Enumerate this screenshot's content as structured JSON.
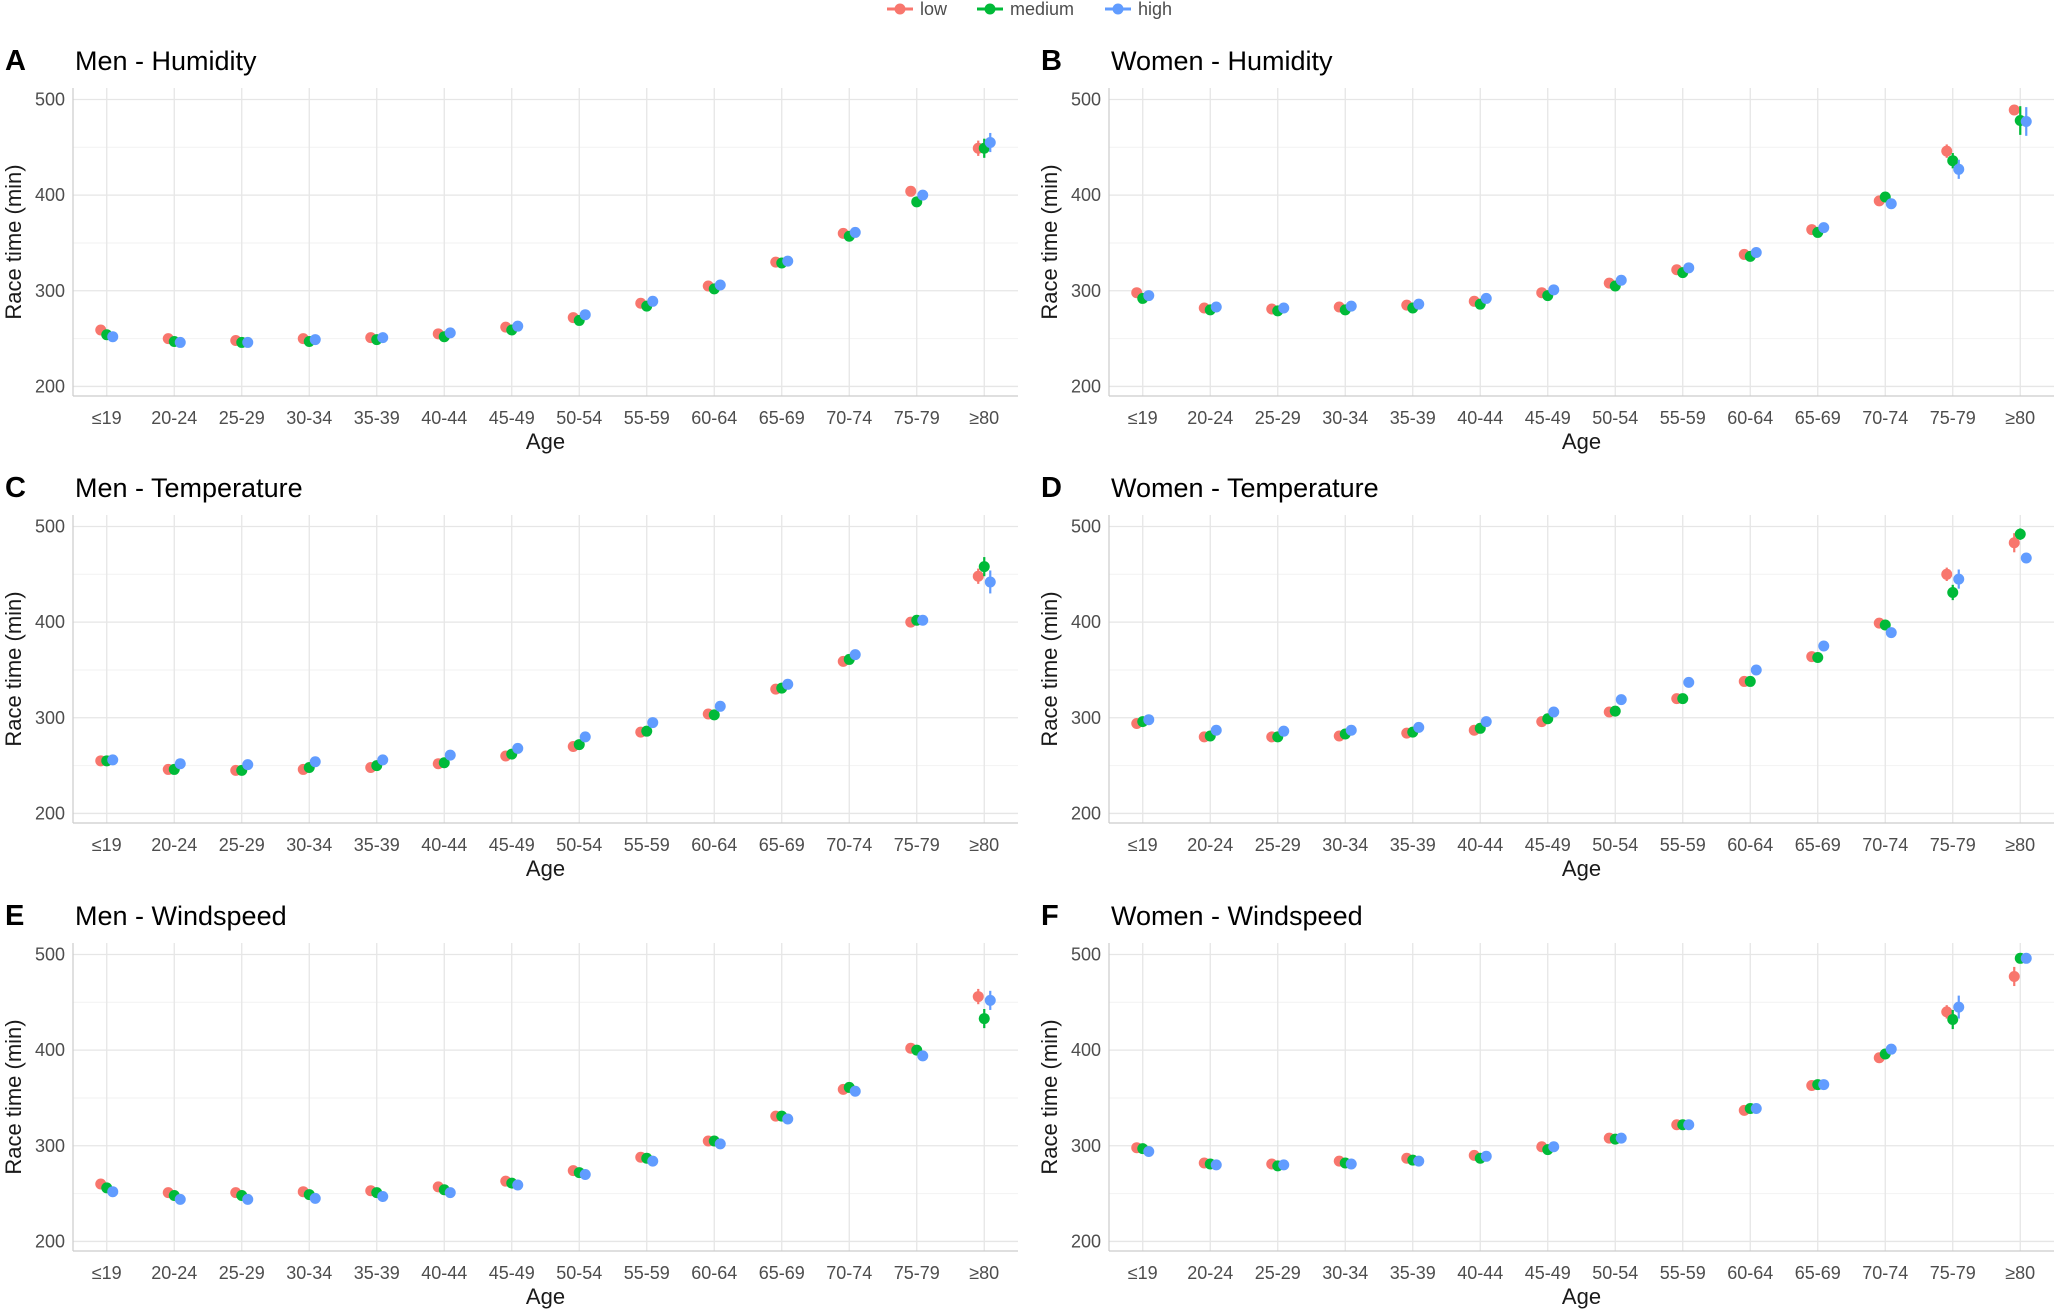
{
  "legend": {
    "items": [
      {
        "label": "low",
        "color": "#F8766D"
      },
      {
        "label": "medium",
        "color": "#00BA38"
      },
      {
        "label": "high",
        "color": "#619CFF"
      }
    ]
  },
  "chart_data": [
    {
      "letter": "A",
      "title": "Men - Humidity",
      "type": "scatter",
      "xlabel": "Age",
      "ylabel": "Race time (min)",
      "ylim": [
        190,
        512
      ],
      "yticks": [
        200,
        300,
        400,
        500
      ],
      "categories": [
        "≤19",
        "20-24",
        "25-29",
        "30-34",
        "35-39",
        "40-44",
        "45-49",
        "50-54",
        "55-59",
        "60-64",
        "65-69",
        "70-74",
        "75-79",
        "≥80"
      ],
      "series": [
        {
          "name": "low",
          "values": [
            259,
            250,
            248,
            250,
            251,
            255,
            262,
            272,
            287,
            305,
            330,
            360,
            404,
            449
          ],
          "err": [
            3,
            2,
            2,
            2,
            2,
            2,
            2,
            2,
            2,
            2,
            3,
            3,
            4,
            8
          ]
        },
        {
          "name": "medium",
          "values": [
            254,
            247,
            246,
            247,
            249,
            252,
            259,
            269,
            284,
            302,
            329,
            357,
            393,
            449
          ],
          "err": [
            3,
            2,
            2,
            2,
            2,
            2,
            2,
            2,
            2,
            2,
            3,
            3,
            5,
            10
          ]
        },
        {
          "name": "high",
          "values": [
            252,
            246,
            246,
            249,
            251,
            256,
            263,
            275,
            289,
            306,
            331,
            361,
            400,
            455
          ],
          "err": [
            3,
            2,
            2,
            2,
            2,
            2,
            2,
            2,
            2,
            2,
            3,
            3,
            4,
            10
          ]
        }
      ]
    },
    {
      "letter": "B",
      "title": "Women - Humidity",
      "type": "scatter",
      "xlabel": "Age",
      "ylabel": "Race time (min)",
      "ylim": [
        190,
        512
      ],
      "yticks": [
        200,
        300,
        400,
        500
      ],
      "categories": [
        "≤19",
        "20-24",
        "25-29",
        "30-34",
        "35-39",
        "40-44",
        "45-49",
        "50-54",
        "55-59",
        "60-64",
        "65-69",
        "70-74",
        "75-79",
        "≥80"
      ],
      "series": [
        {
          "name": "low",
          "values": [
            298,
            282,
            281,
            283,
            285,
            289,
            298,
            308,
            322,
            338,
            364,
            394,
            446,
            489
          ],
          "err": [
            3,
            2,
            2,
            2,
            2,
            2,
            2,
            2,
            2,
            2,
            3,
            4,
            7,
            5
          ]
        },
        {
          "name": "medium",
          "values": [
            292,
            280,
            279,
            280,
            282,
            286,
            295,
            305,
            319,
            336,
            361,
            398,
            436,
            478
          ],
          "err": [
            3,
            2,
            2,
            2,
            2,
            2,
            2,
            2,
            2,
            2,
            3,
            4,
            8,
            15
          ]
        },
        {
          "name": "high",
          "values": [
            295,
            283,
            282,
            284,
            286,
            292,
            301,
            311,
            324,
            340,
            366,
            391,
            427,
            477
          ],
          "err": [
            3,
            2,
            2,
            2,
            2,
            2,
            2,
            2,
            2,
            2,
            3,
            4,
            10,
            15
          ]
        }
      ]
    },
    {
      "letter": "C",
      "title": "Men - Temperature",
      "type": "scatter",
      "xlabel": "Age",
      "ylabel": "Race time (min)",
      "ylim": [
        190,
        512
      ],
      "yticks": [
        200,
        300,
        400,
        500
      ],
      "categories": [
        "≤19",
        "20-24",
        "25-29",
        "30-34",
        "35-39",
        "40-44",
        "45-49",
        "50-54",
        "55-59",
        "60-64",
        "65-69",
        "70-74",
        "75-79",
        "≥80"
      ],
      "series": [
        {
          "name": "low",
          "values": [
            255,
            246,
            245,
            246,
            248,
            252,
            260,
            270,
            285,
            304,
            330,
            359,
            400,
            448
          ],
          "err": [
            2,
            2,
            2,
            2,
            2,
            2,
            2,
            2,
            2,
            2,
            3,
            3,
            4,
            8
          ]
        },
        {
          "name": "medium",
          "values": [
            255,
            246,
            245,
            248,
            250,
            253,
            262,
            272,
            286,
            303,
            331,
            361,
            402,
            458
          ],
          "err": [
            2,
            2,
            2,
            2,
            2,
            2,
            2,
            2,
            2,
            2,
            3,
            3,
            4,
            10
          ]
        },
        {
          "name": "high",
          "values": [
            256,
            252,
            251,
            254,
            256,
            261,
            268,
            280,
            295,
            312,
            335,
            366,
            402,
            442
          ],
          "err": [
            2,
            2,
            2,
            2,
            2,
            2,
            2,
            2,
            2,
            2,
            3,
            3,
            4,
            12
          ]
        }
      ]
    },
    {
      "letter": "D",
      "title": "Women - Temperature",
      "type": "scatter",
      "xlabel": "Age",
      "ylabel": "Race time (min)",
      "ylim": [
        190,
        512
      ],
      "yticks": [
        200,
        300,
        400,
        500
      ],
      "categories": [
        "≤19",
        "20-24",
        "25-29",
        "30-34",
        "35-39",
        "40-44",
        "45-49",
        "50-54",
        "55-59",
        "60-64",
        "65-69",
        "70-74",
        "75-79",
        "≥80"
      ],
      "series": [
        {
          "name": "low",
          "values": [
            294,
            280,
            280,
            281,
            284,
            287,
            296,
            306,
            320,
            338,
            364,
            399,
            450,
            483
          ],
          "err": [
            3,
            2,
            2,
            2,
            2,
            2,
            2,
            2,
            2,
            2,
            3,
            4,
            7,
            10
          ]
        },
        {
          "name": "medium",
          "values": [
            296,
            281,
            280,
            283,
            285,
            289,
            299,
            307,
            320,
            338,
            363,
            397,
            431,
            492
          ],
          "err": [
            3,
            2,
            2,
            2,
            2,
            2,
            2,
            2,
            2,
            2,
            3,
            4,
            8,
            6
          ]
        },
        {
          "name": "high",
          "values": [
            298,
            287,
            286,
            287,
            290,
            296,
            306,
            319,
            337,
            350,
            375,
            389,
            445,
            467
          ],
          "err": [
            3,
            2,
            2,
            2,
            2,
            2,
            2,
            2,
            2,
            2,
            3,
            5,
            10,
            2
          ]
        }
      ]
    },
    {
      "letter": "E",
      "title": "Men - Windspeed",
      "type": "scatter",
      "xlabel": "Age",
      "ylabel": "Race time (min)",
      "ylim": [
        190,
        512
      ],
      "yticks": [
        200,
        300,
        400,
        500
      ],
      "categories": [
        "≤19",
        "20-24",
        "25-29",
        "30-34",
        "35-39",
        "40-44",
        "45-49",
        "50-54",
        "55-59",
        "60-64",
        "65-69",
        "70-74",
        "75-79",
        "≥80"
      ],
      "series": [
        {
          "name": "low",
          "values": [
            260,
            251,
            251,
            252,
            253,
            257,
            263,
            274,
            288,
            305,
            331,
            359,
            402,
            456
          ],
          "err": [
            2,
            2,
            2,
            2,
            2,
            2,
            2,
            2,
            2,
            2,
            3,
            3,
            4,
            8
          ]
        },
        {
          "name": "medium",
          "values": [
            256,
            248,
            248,
            249,
            251,
            254,
            261,
            272,
            287,
            305,
            331,
            361,
            400,
            433
          ],
          "err": [
            2,
            2,
            2,
            2,
            2,
            2,
            2,
            2,
            2,
            2,
            3,
            3,
            4,
            10
          ]
        },
        {
          "name": "high",
          "values": [
            252,
            244,
            244,
            245,
            247,
            251,
            259,
            270,
            284,
            302,
            328,
            357,
            394,
            452
          ],
          "err": [
            2,
            2,
            2,
            2,
            2,
            2,
            2,
            2,
            2,
            2,
            3,
            3,
            4,
            10
          ]
        }
      ]
    },
    {
      "letter": "F",
      "title": "Women - Windspeed",
      "type": "scatter",
      "xlabel": "Age",
      "ylabel": "Race time (min)",
      "ylim": [
        190,
        512
      ],
      "yticks": [
        200,
        300,
        400,
        500
      ],
      "categories": [
        "≤19",
        "20-24",
        "25-29",
        "30-34",
        "35-39",
        "40-44",
        "45-49",
        "50-54",
        "55-59",
        "60-64",
        "65-69",
        "70-74",
        "75-79",
        "≥80"
      ],
      "series": [
        {
          "name": "low",
          "values": [
            298,
            282,
            281,
            284,
            287,
            290,
            299,
            308,
            322,
            337,
            363,
            392,
            440,
            477
          ],
          "err": [
            3,
            2,
            2,
            2,
            2,
            2,
            2,
            2,
            2,
            2,
            3,
            4,
            7,
            10
          ]
        },
        {
          "name": "medium",
          "values": [
            297,
            281,
            279,
            282,
            285,
            287,
            296,
            307,
            322,
            339,
            364,
            396,
            432,
            496
          ],
          "err": [
            3,
            2,
            2,
            2,
            2,
            2,
            2,
            2,
            2,
            2,
            3,
            4,
            10,
            5
          ]
        },
        {
          "name": "high",
          "values": [
            294,
            280,
            280,
            281,
            284,
            289,
            299,
            308,
            322,
            339,
            364,
            401,
            445,
            496
          ],
          "err": [
            3,
            2,
            2,
            2,
            2,
            2,
            2,
            2,
            2,
            2,
            3,
            4,
            12,
            5
          ]
        }
      ]
    }
  ]
}
